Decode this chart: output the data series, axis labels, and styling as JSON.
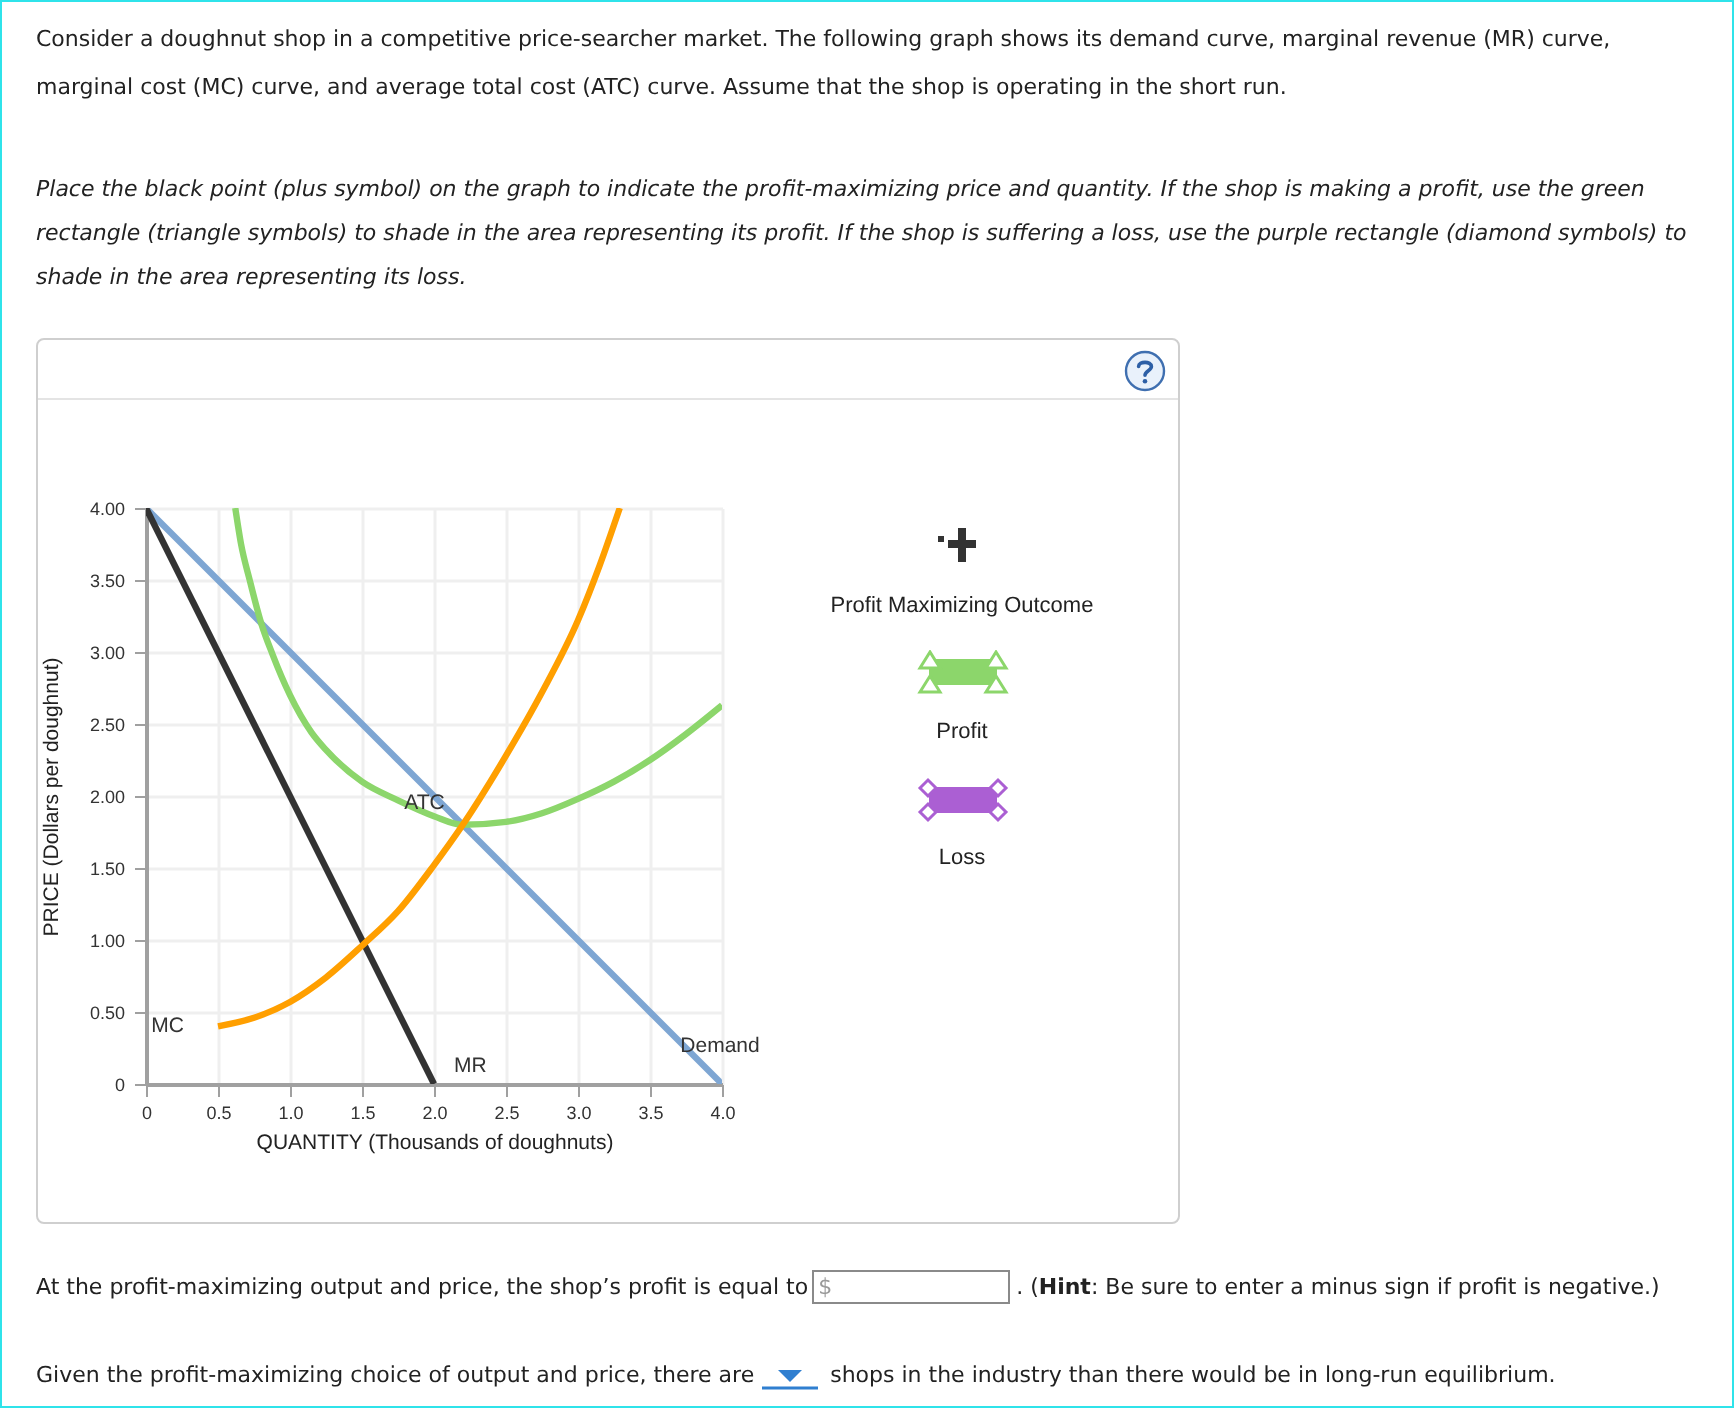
{
  "chart_data": {
    "type": "line",
    "title": "Consider a doughnut shop in a competitive price-searcher market. The following graph shows its demand curve, marginal revenue (MR) curve, marginal cost (MC) curve, and average total cost (ATC) curve. Assume that the shop is operating in the short run.",
    "subtitle": "Place the black point (plus symbol) on the graph to indicate the profit-maximizing price and quantity. If the shop is making a profit, use the green rectangle (triangle symbols) to shade in the area representing its profit. If the shop is suffering a loss, use the purple rectangle (diamond symbols) to shade in the area representing its loss.",
    "xlabel": "QUANTITY (Thousands of doughnuts)",
    "ylabel": "PRICE  (Dollars per doughnut)",
    "xlim": [
      0,
      4
    ],
    "ylim": [
      0,
      4
    ],
    "xticks": [
      0,
      {
        "value": 0.5,
        "label": "0.5"
      },
      {
        "value": 1,
        "label": "1.0"
      },
      {
        "value": 1.5,
        "label": "1.5"
      },
      {
        "value": 2,
        "label": "2.0"
      },
      {
        "value": 2.5,
        "label": "2.5"
      },
      {
        "value": 3,
        "label": "3.0"
      },
      {
        "value": 3.5,
        "label": "3.5"
      },
      {
        "value": 4,
        "label": "4.0"
      }
    ],
    "yticks": [
      0,
      {
        "value": 0.5,
        "label": "0.50"
      },
      {
        "value": 1,
        "label": "1.00"
      },
      {
        "value": 1.5,
        "label": "1.50"
      },
      {
        "value": 2,
        "label": "2.00"
      },
      {
        "value": 2.5,
        "label": "2.50"
      },
      {
        "value": 3,
        "label": "3.00"
      },
      {
        "value": 3.5,
        "label": "3.50"
      },
      {
        "value": 4,
        "label": "4.00"
      }
    ],
    "grid": true,
    "series": [
      {
        "name": "Demand",
        "color": "#7ea6d3",
        "x": [
          0,
          4
        ],
        "values": [
          4,
          0
        ]
      },
      {
        "name": "MR",
        "color": "#333333",
        "x": [
          0,
          2
        ],
        "values": [
          4,
          0
        ]
      },
      {
        "name": "ATC",
        "color": "#8cd66b",
        "x": [
          0.62,
          0.66,
          0.72,
          0.8,
          0.88,
          1.0,
          1.15,
          1.25,
          1.5,
          1.75,
          2.0,
          2.2,
          2.5,
          2.75,
          3.0,
          3.25,
          3.5,
          3.75,
          4.0
        ],
        "values": [
          4.0,
          3.75,
          3.5,
          3.2,
          2.98,
          2.7,
          2.44,
          2.32,
          2.1,
          1.97,
          1.86,
          1.8,
          1.82,
          1.88,
          1.98,
          2.1,
          2.25,
          2.43,
          2.63
        ]
      },
      {
        "name": "MC",
        "color": "#ff9f00",
        "x": [
          0.5,
          0.75,
          1.0,
          1.25,
          1.5,
          1.75,
          2.0,
          2.2,
          2.5,
          2.75,
          3.0,
          3.15,
          3.29
        ],
        "values": [
          0.4,
          0.46,
          0.57,
          0.74,
          0.96,
          1.2,
          1.52,
          1.8,
          2.28,
          2.72,
          3.22,
          3.6,
          4.0
        ]
      }
    ],
    "annotations": [
      "Profit Maximizing Outcome",
      "Profit",
      "Loss",
      "At the profit-maximizing output and price, the shop’s profit is equal to",
      "$",
      ". (",
      "Hint",
      ": Be sure to enter a minus sign if profit is negative.)",
      "Given the profit-maximizing choice of output and price, there are",
      "shops in the industry than there would be in long-run equilibrium."
    ]
  }
}
